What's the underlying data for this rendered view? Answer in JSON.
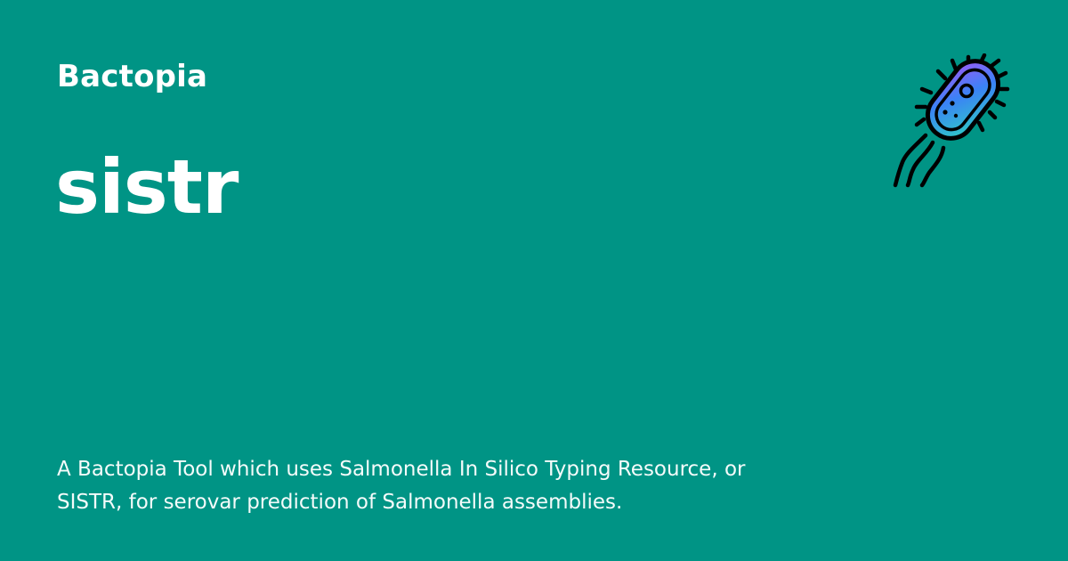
{
  "site": {
    "name": "Bactopia"
  },
  "page": {
    "title": "sistr",
    "description": "A Bactopia Tool which uses Salmonella In Silico Typing Resource, or SISTR, for serovar prediction of Salmonella assemblies."
  },
  "logo": {
    "icon": "bacterium-icon"
  },
  "colors": {
    "background": "#009485",
    "text": "#ffffff",
    "logo_gradient_start": "#a855f7",
    "logo_gradient_mid": "#3b82f6",
    "logo_gradient_end": "#2dd4bf",
    "logo_outline": "#000000"
  }
}
